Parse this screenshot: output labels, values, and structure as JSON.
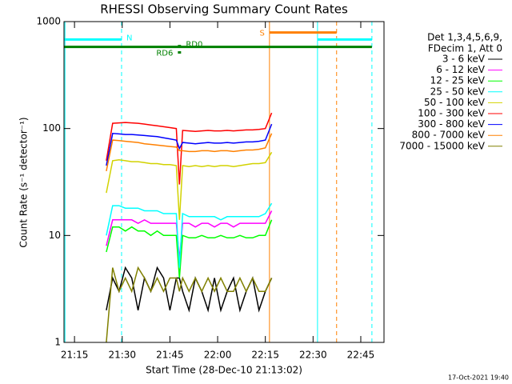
{
  "chart_data": {
    "type": "line",
    "title": "RHESSI Observing Summary Count Rates",
    "x_label": "Start Time (28-Dec-10 21:13:02)",
    "y_label": "Count Rate (s⁻¹ detector⁻¹)",
    "footer": "17-Oct-2021 19:40",
    "legend_header": [
      "Det 1,3,4,5,6,9,",
      "FDecim 1, Att 0"
    ],
    "log_y": true,
    "xlim": [
      1271.7,
      1372.3
    ],
    "ylim": [
      1,
      1000
    ],
    "xticks": [
      {
        "value": 1275,
        "label": "21:15"
      },
      {
        "value": 1290,
        "label": "21:30"
      },
      {
        "value": 1305,
        "label": "21:45"
      },
      {
        "value": 1320,
        "label": "22:00"
      },
      {
        "value": 1335,
        "label": "22:15"
      },
      {
        "value": 1350,
        "label": "22:30"
      },
      {
        "value": 1365,
        "label": "22:45"
      }
    ],
    "yticks": [
      1,
      10,
      100,
      1000
    ],
    "x": [
      1285,
      1287,
      1289,
      1291,
      1293,
      1295,
      1297,
      1299,
      1301,
      1303,
      1305,
      1307,
      1308,
      1309,
      1311,
      1313,
      1315,
      1317,
      1319,
      1321,
      1323,
      1325,
      1327,
      1329,
      1331,
      1333,
      1335,
      1337
    ],
    "series": [
      {
        "name": "3 - 6 keV",
        "color": "#000000",
        "values": [
          2,
          4,
          3,
          5,
          4,
          2,
          4,
          3,
          5,
          4,
          2,
          4,
          4,
          3,
          2,
          4,
          3,
          2,
          4,
          2,
          3,
          4,
          2,
          3,
          4,
          2,
          3,
          4
        ]
      },
      {
        "name": "6 - 12 keV",
        "color": "#ff00ff",
        "values": [
          8,
          14,
          14,
          14,
          14,
          13,
          14,
          13,
          13,
          13,
          13,
          13,
          6,
          13,
          13,
          12,
          13,
          13,
          12,
          13,
          13,
          12,
          13,
          13,
          13,
          13,
          13,
          17
        ]
      },
      {
        "name": "12 - 25 keV",
        "color": "#00ff00",
        "values": [
          7,
          12,
          12,
          11,
          12,
          11,
          11,
          10,
          11,
          10,
          10,
          10,
          4,
          10,
          9.5,
          9.5,
          10,
          9.5,
          9.5,
          10,
          9.5,
          9.5,
          10,
          9.5,
          9.5,
          10,
          10,
          14
        ]
      },
      {
        "name": "25 - 50 keV",
        "color": "#00ffff",
        "values": [
          10,
          19,
          19,
          18,
          18,
          18,
          17,
          17,
          17,
          16,
          16,
          16,
          5,
          16,
          15,
          15,
          15,
          15,
          15,
          14,
          15,
          15,
          15,
          15,
          15,
          15,
          16,
          20
        ]
      },
      {
        "name": "50 - 100 keV",
        "color": "#d2d200",
        "values": [
          25,
          50,
          51,
          50,
          49,
          49,
          48,
          47,
          47,
          46,
          46,
          45,
          14,
          45,
          44,
          45,
          44,
          45,
          44,
          45,
          45,
          44,
          45,
          46,
          47,
          47,
          48,
          60
        ]
      },
      {
        "name": "100 - 300 keV",
        "color": "#ff0000",
        "values": [
          50,
          112,
          113,
          114,
          113,
          112,
          110,
          108,
          106,
          104,
          102,
          100,
          30,
          96,
          95,
          94,
          95,
          96,
          95,
          95,
          96,
          95,
          96,
          97,
          97,
          98,
          100,
          140
        ]
      },
      {
        "name": "300 - 800 keV",
        "color": "#0000ff",
        "values": [
          45,
          90,
          89,
          88,
          88,
          87,
          86,
          85,
          84,
          82,
          80,
          78,
          65,
          74,
          73,
          72,
          73,
          74,
          73,
          73,
          74,
          73,
          74,
          75,
          75,
          76,
          78,
          110
        ]
      },
      {
        "name": "800 - 7000 keV",
        "color": "#ff8000",
        "values": [
          40,
          78,
          77,
          76,
          75,
          74,
          72,
          71,
          70,
          69,
          68,
          67,
          62,
          62,
          61,
          61,
          62,
          62,
          61,
          62,
          62,
          61,
          62,
          63,
          63,
          64,
          66,
          90
        ]
      },
      {
        "name": "7000 - 15000 keV",
        "color": "#808000",
        "values": [
          1,
          5,
          3,
          4,
          3,
          5,
          4,
          3,
          4,
          3,
          4,
          4,
          3,
          4,
          3,
          4,
          3,
          4,
          3,
          4,
          3,
          3,
          4,
          3,
          4,
          3,
          3,
          4
        ]
      }
    ],
    "flag_bars": [
      {
        "label": "N",
        "label_pos": "right",
        "color": "#00ffff",
        "x": [
          1271.7,
          1289.8
        ],
        "y": 680
      },
      {
        "color": "#00ffff",
        "x": [
          1351.4,
          1368.5
        ],
        "y": 680
      },
      {
        "color": "#008000",
        "x": [
          1271.7,
          1368.5
        ],
        "y": 580
      },
      {
        "label": "S",
        "label_pos": "left",
        "color": "#ff8000",
        "x": [
          1336.3,
          1357.4
        ],
        "y": 790
      },
      {
        "label": "RD0",
        "label_pos": "right",
        "color": "#008000",
        "x": [
          1307.5,
          1308.5
        ],
        "y": 590
      },
      {
        "label": "RD6",
        "label_pos": "left",
        "color": "#008000",
        "x": [
          1307.5,
          1308.5
        ],
        "y": 515
      }
    ],
    "vlines": [
      {
        "x": 1272,
        "color": "#00ffff",
        "dashed": false
      },
      {
        "x": 1289.8,
        "color": "#00ffff",
        "dashed": true
      },
      {
        "x": 1336.3,
        "color": "#ff8000",
        "dashed": false
      },
      {
        "x": 1351.4,
        "color": "#00ffff",
        "dashed": false
      },
      {
        "x": 1357.4,
        "color": "#ff8000",
        "dashed": true
      },
      {
        "x": 1368.5,
        "color": "#00ffff",
        "dashed": true
      }
    ]
  }
}
